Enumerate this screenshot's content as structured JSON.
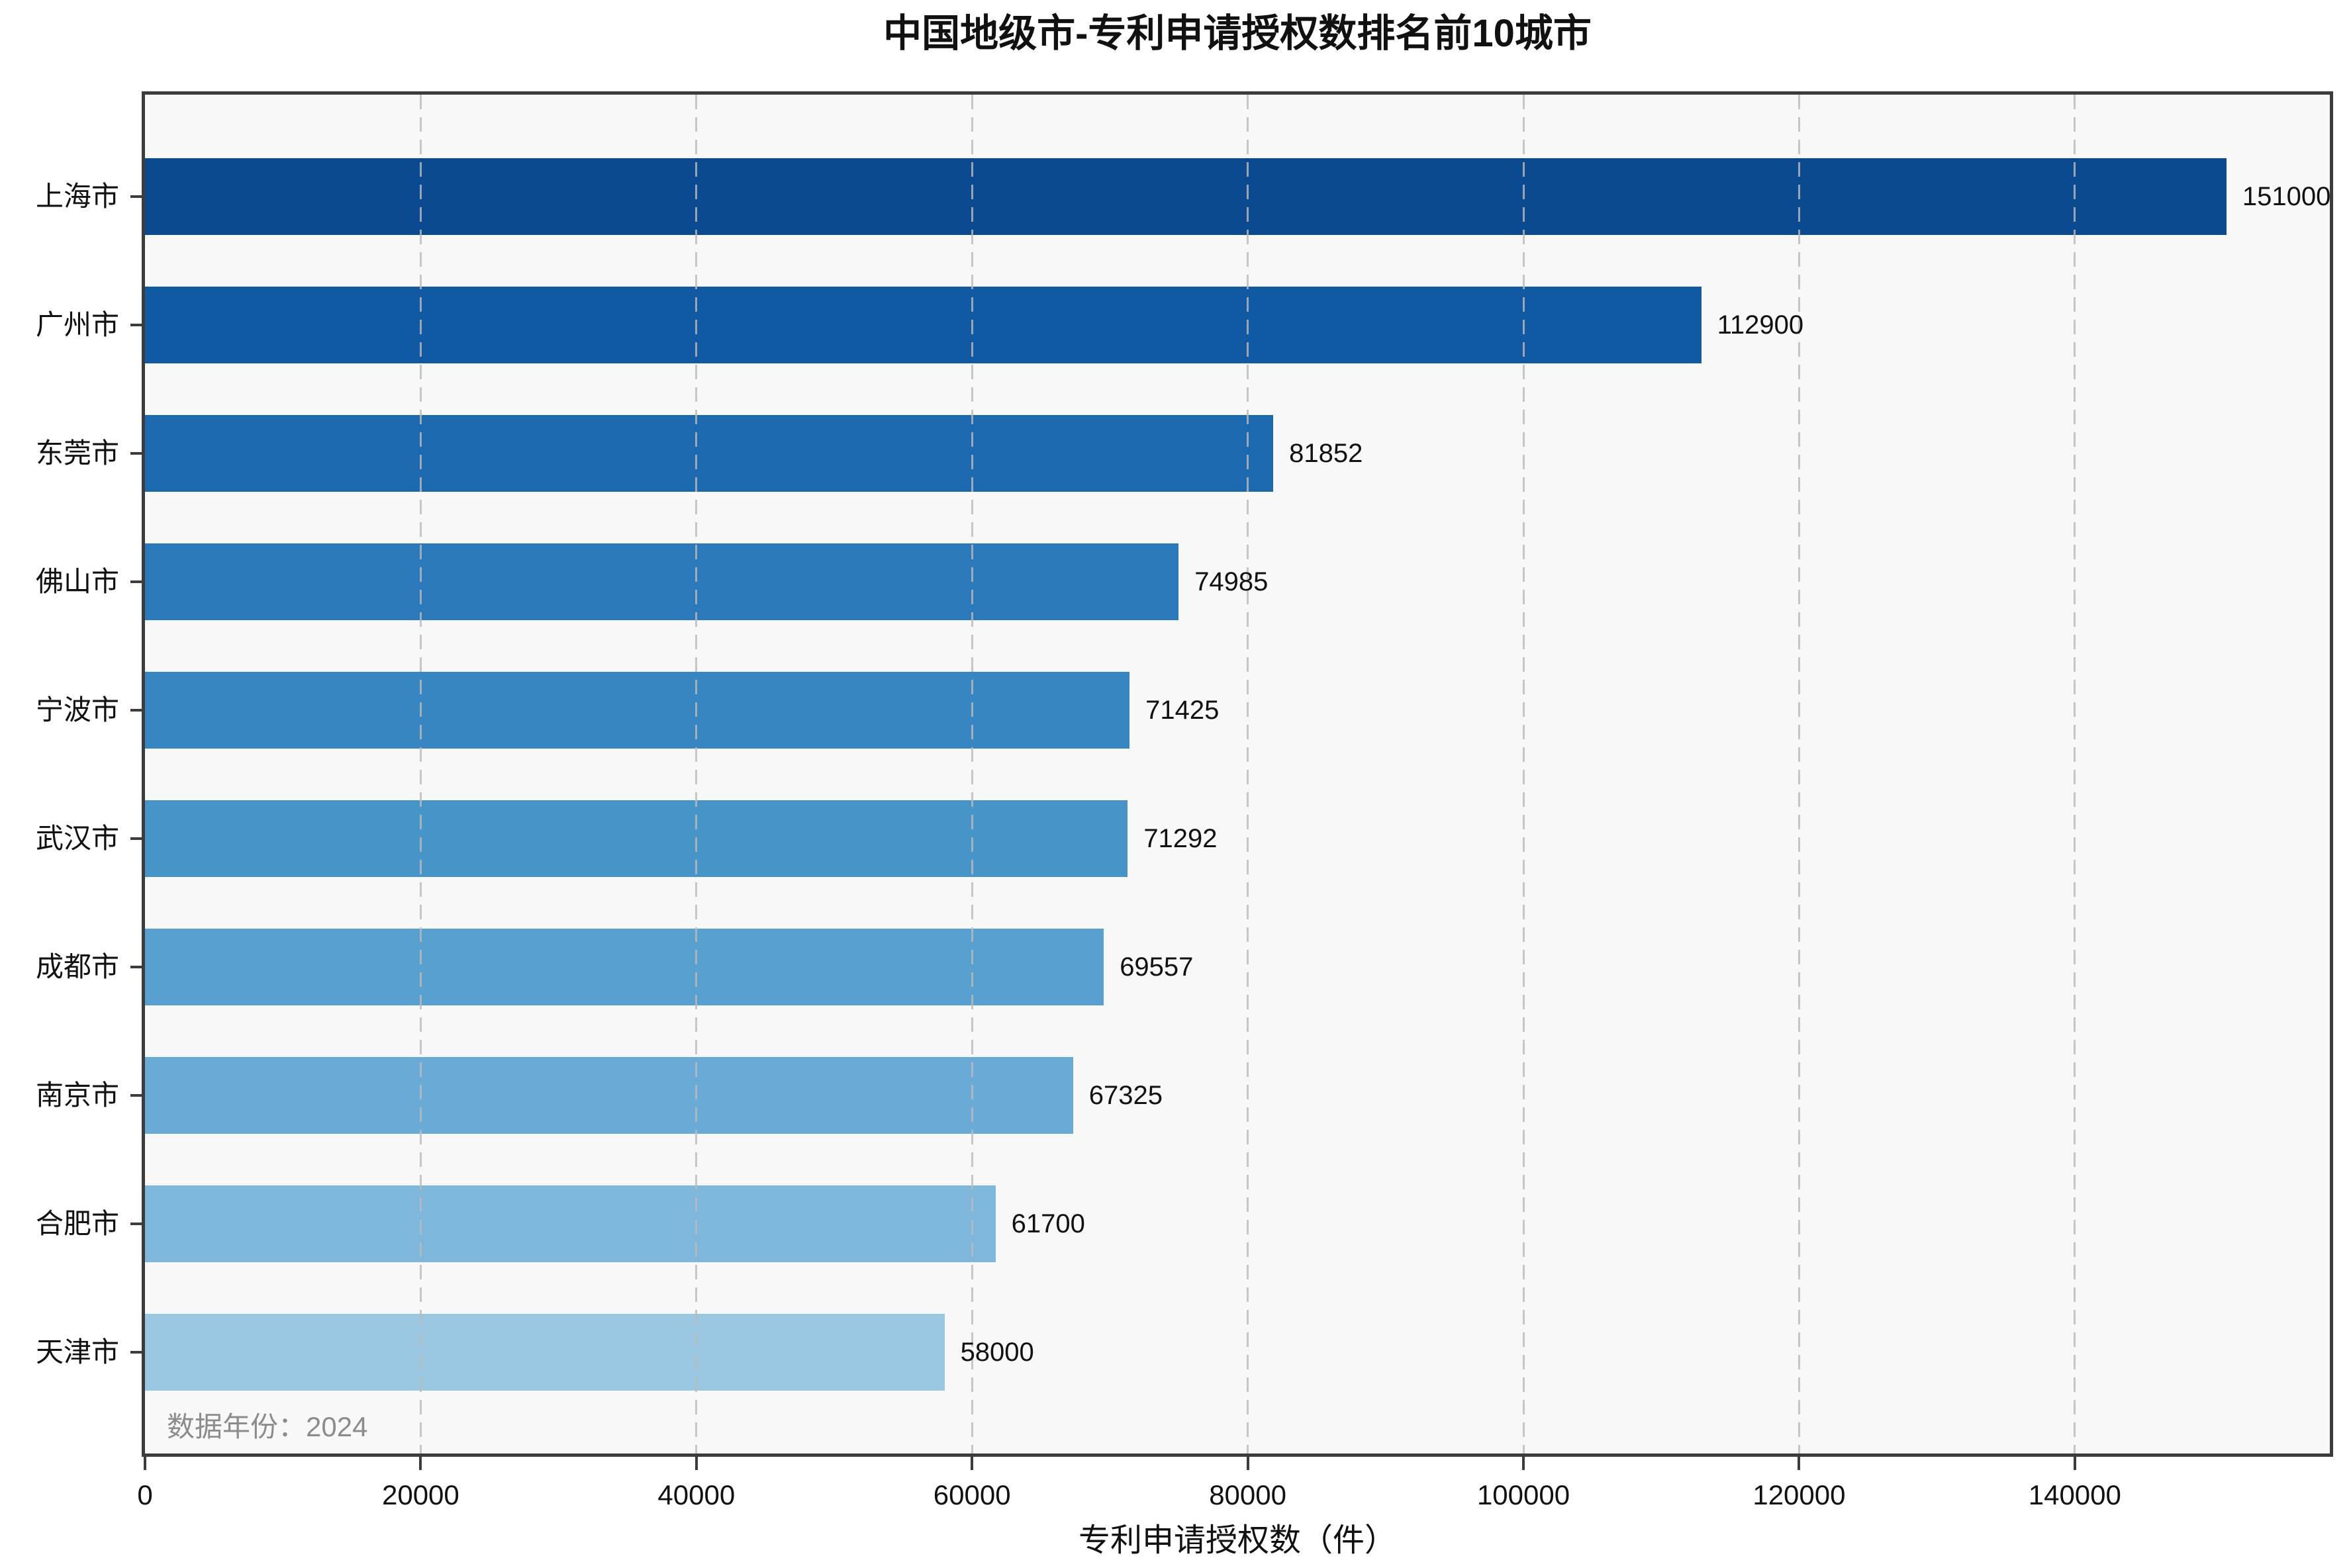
{
  "title": "中国地级市-专利申请授权数排名前10城市",
  "xlabel": "专利申请授权数（件）",
  "annotation": "数据年份：2024",
  "chart_data": {
    "type": "bar",
    "orientation": "horizontal",
    "title": "中国地级市-专利申请授权数排名前10城市",
    "xlabel": "专利申请授权数（件）",
    "annotation": "数据年份：2024",
    "categories": [
      "上海市",
      "广州市",
      "东莞市",
      "佛山市",
      "宁波市",
      "武汉市",
      "成都市",
      "南京市",
      "合肥市",
      "天津市"
    ],
    "values": [
      151000,
      112900,
      81852,
      74985,
      71425,
      71292,
      69557,
      67325,
      61700,
      58000
    ],
    "value_labels": [
      "151000",
      "112900",
      "81852",
      "74985",
      "71425",
      "71292",
      "69557",
      "67325",
      "61700",
      "58000"
    ],
    "bar_colors": [
      "#0b4a90",
      "#1259a3",
      "#1c69b0",
      "#2b79ba",
      "#3786c2",
      "#4794c8",
      "#58a0cf",
      "#69abd6",
      "#7fb6dc",
      "#9ac8e2"
    ],
    "xlim": [
      0,
      158500
    ],
    "xticks": [
      0,
      20000,
      40000,
      60000,
      80000,
      100000,
      120000,
      140000
    ],
    "xtick_labels": [
      "0",
      "20000",
      "40000",
      "60000",
      "80000",
      "100000",
      "120000",
      "140000"
    ],
    "grid": {
      "axis": "x",
      "style": "dashed",
      "color": "#bababa",
      "above_bars": true
    },
    "plot_background": "#f8f8f8",
    "figure_background": "#ffffff",
    "spine_color": "#3c3c3c",
    "annotation_color": "#8c8c8c",
    "legend": "none"
  }
}
